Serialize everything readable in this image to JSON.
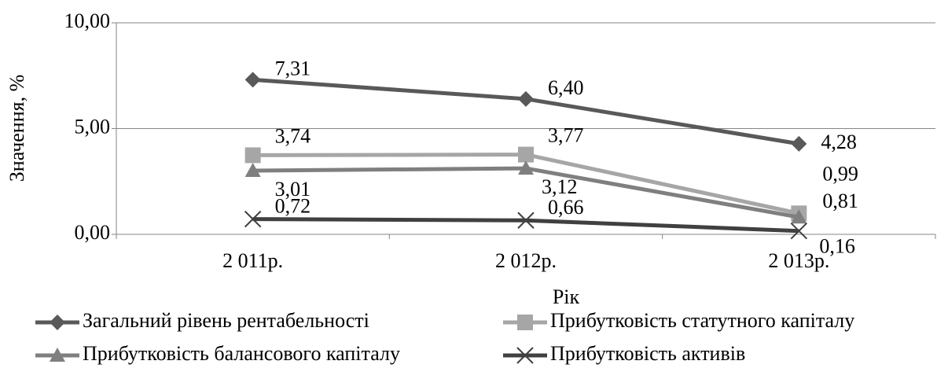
{
  "chart_data": {
    "type": "line",
    "x_label": "Рік",
    "y_label": "Значення, %",
    "categories": [
      "2 011р.",
      "2 012р.",
      "2 013р."
    ],
    "ylim": [
      0,
      10
    ],
    "yticks": [
      {
        "value": 0,
        "label": "0,00"
      },
      {
        "value": 5,
        "label": "5,00"
      },
      {
        "value": 10,
        "label": "10,00"
      }
    ],
    "grid": true,
    "series": [
      {
        "name": "Загальний рівень рентабельності",
        "color": "#595959",
        "marker": "diamond",
        "values": [
          7.31,
          6.4,
          4.28
        ],
        "value_labels": [
          "7,31",
          "6,40",
          "4,28"
        ]
      },
      {
        "name": "Прибутковість статутного капіталу",
        "color": "#a6a6a6",
        "marker": "square",
        "values": [
          3.74,
          3.77,
          0.99
        ],
        "value_labels": [
          "3,74",
          "3,77",
          "0,99"
        ]
      },
      {
        "name": "Прибутковість балансового капіталу",
        "color": "#7f7f7f",
        "marker": "triangle",
        "values": [
          3.01,
          3.12,
          0.81
        ],
        "value_labels": [
          "3,01",
          "3,12",
          "0,81"
        ]
      },
      {
        "name": "Прибутковість активів",
        "color": "#404040",
        "marker": "x",
        "values": [
          0.72,
          0.66,
          0.16
        ],
        "value_labels": [
          "0,72",
          "0,66",
          "0,16"
        ]
      }
    ]
  }
}
